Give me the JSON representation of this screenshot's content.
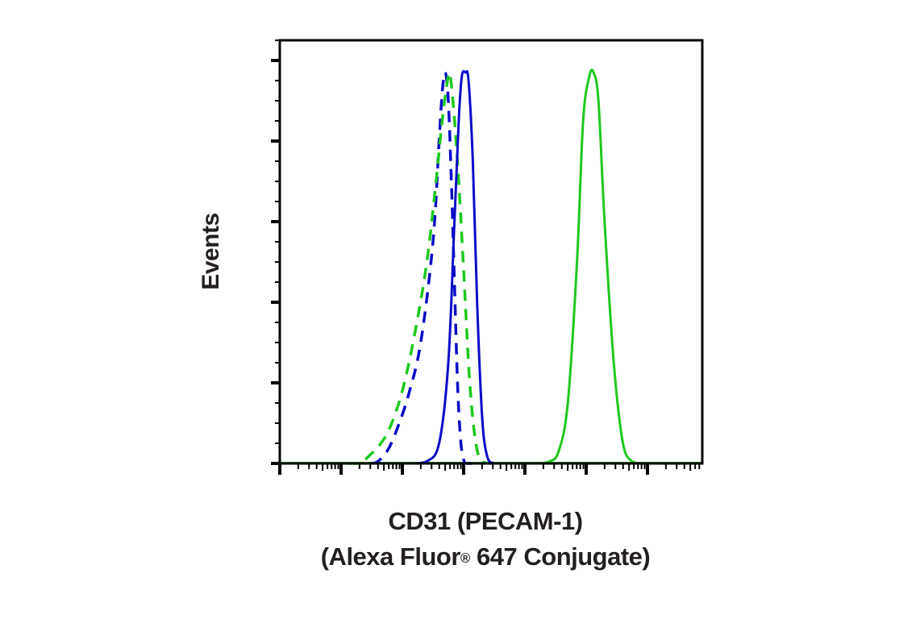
{
  "chart_data": {
    "type": "line",
    "subtype": "flow-cytometry-histogram-overlay",
    "title": "",
    "xlabel": "CD31 (PECAM-1) (Alexa Fluor® 647 Conjugate)",
    "xlabel_lines": [
      "CD31 (PECAM-1)",
      "(Alexa Fluor",
      "® 647 Conjugate)"
    ],
    "ylabel": "Events",
    "x_scale": "log",
    "x_units": "decades from axis origin",
    "xlim": [
      0,
      6.9
    ],
    "x_major_ticks": [
      0,
      1,
      2,
      3,
      4,
      5,
      6
    ],
    "x_tick_labels": [],
    "y_units": "% of max",
    "ylim": [
      0,
      105
    ],
    "y_major_ticks": [
      0,
      20,
      40,
      60,
      80,
      100
    ],
    "y_tick_labels": [],
    "grid": false,
    "legend": null,
    "series": [
      {
        "name": "blue-dashed",
        "color": "#0a0ac8",
        "style": "dashed",
        "x": [
          1.5,
          1.6,
          1.75,
          1.9,
          2.1,
          2.3,
          2.5,
          2.6,
          2.65,
          2.7,
          2.75,
          2.8,
          2.85,
          2.9,
          2.95,
          3.0,
          3.05,
          3.2
        ],
        "y": [
          0,
          0.5,
          3,
          8,
          17,
          30,
          55,
          80,
          92,
          97,
          90,
          70,
          45,
          20,
          6,
          1,
          0,
          0
        ]
      },
      {
        "name": "green-dashed",
        "color": "#1ec81e",
        "style": "dashed",
        "x": [
          1.1,
          1.3,
          1.5,
          1.65,
          1.8,
          2.0,
          2.2,
          2.4,
          2.55,
          2.65,
          2.75,
          2.8,
          2.9,
          3.0,
          3.1,
          3.2,
          3.3,
          3.45
        ],
        "y": [
          0,
          0,
          2.5,
          5,
          9,
          18,
          32,
          50,
          70,
          85,
          96,
          94,
          75,
          48,
          20,
          5,
          0.5,
          0
        ]
      },
      {
        "name": "blue-solid",
        "color": "#0a0ac8",
        "style": "solid",
        "x": [
          2.2,
          2.4,
          2.6,
          2.75,
          2.85,
          2.92,
          2.97,
          3.03,
          3.08,
          3.15,
          3.22,
          3.3,
          3.38,
          3.5,
          3.7
        ],
        "y": [
          0,
          0.5,
          5,
          25,
          60,
          85,
          96,
          97,
          95,
          75,
          40,
          12,
          2,
          0,
          0
        ]
      },
      {
        "name": "green-solid",
        "color": "#1ec81e",
        "style": "solid",
        "x": [
          4.2,
          4.4,
          4.55,
          4.7,
          4.85,
          4.95,
          5.05,
          5.12,
          5.2,
          5.3,
          5.45,
          5.6,
          5.75,
          5.9
        ],
        "y": [
          0,
          0.5,
          3,
          15,
          50,
          85,
          96,
          97,
          90,
          60,
          25,
          5,
          0.5,
          0
        ]
      }
    ]
  },
  "colors": {
    "axis": "#000000",
    "text": "#231f20",
    "blue": "#0a0ac8",
    "green": "#1ec81e"
  },
  "labels": {
    "y_axis": "Events",
    "x_axis_line1": "CD31 (PECAM-1)",
    "x_axis_line2_pre": "(Alexa Fluor",
    "x_axis_line2_reg": "®",
    "x_axis_line2_post": " 647 Conjugate)"
  }
}
